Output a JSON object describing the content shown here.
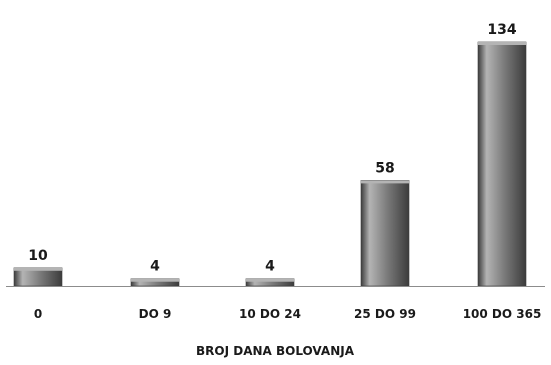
{
  "chart_data": {
    "type": "bar",
    "categories": [
      "0",
      "DO 9",
      "10 DO 24",
      "25 DO 99",
      "100 DO 365"
    ],
    "values": [
      10,
      4,
      4,
      58,
      134
    ],
    "data_labels": [
      "10",
      "4",
      "4",
      "58",
      "134"
    ],
    "title": "",
    "xlabel": "BROJ DANA BOLOVANJA",
    "ylabel": "",
    "ylim": [
      0,
      134
    ],
    "grid": false,
    "legend": "none",
    "colors": {
      "bar_fill": "#7a7a7a",
      "bar_light": "#b4b4b4",
      "bar_dark": "#3c3c3c",
      "axis": "#8c8c8c",
      "text": "#1a1a1a"
    }
  }
}
